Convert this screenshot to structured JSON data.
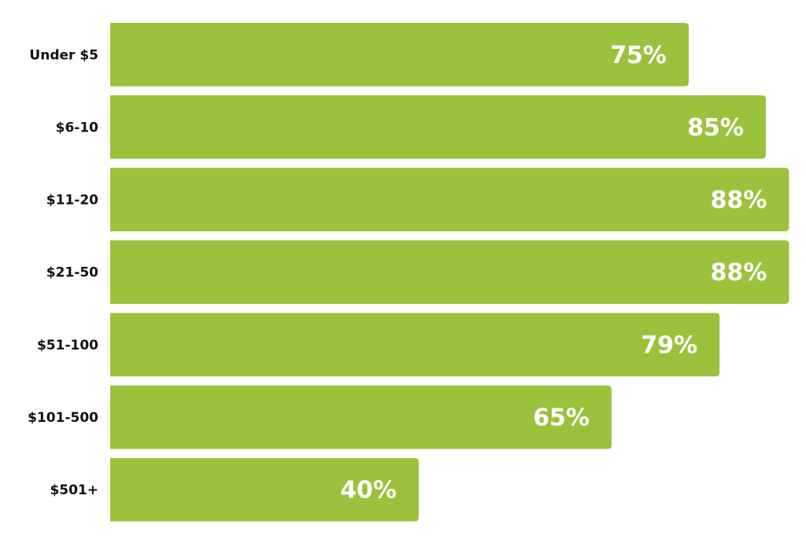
{
  "chart_data": {
    "type": "bar",
    "orientation": "horizontal",
    "categories": [
      "Under $5",
      "$6-10",
      "$11-20",
      "$21-50",
      "$51-100",
      "$101-500",
      "$501+"
    ],
    "values": [
      75,
      85,
      88,
      88,
      79,
      65,
      40
    ],
    "value_labels": [
      "75%",
      "85%",
      "88%",
      "88%",
      "79%",
      "65%",
      "40%"
    ],
    "color": "#9bc23c",
    "xlim": [
      0,
      90
    ]
  }
}
